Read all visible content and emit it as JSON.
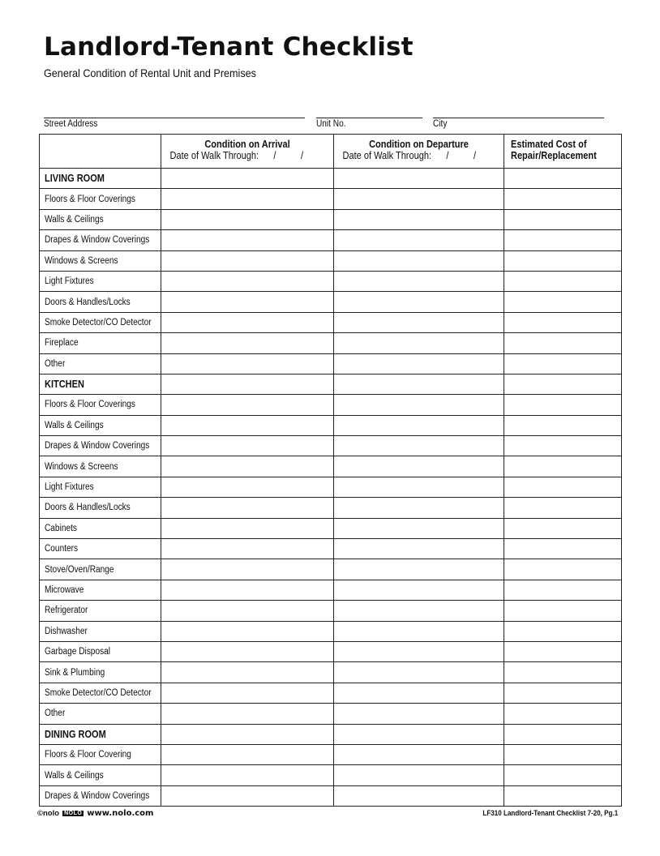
{
  "title": "Landlord-Tenant Checklist",
  "subtitle": "General Condition of Rental Unit and Premises",
  "fields": {
    "street": "Street Address",
    "unit": "Unit No.",
    "city": "City"
  },
  "table": {
    "headers": {
      "arrival": "Condition on Arrival",
      "departure": "Condition on Departure",
      "date_label": "Date of Walk Through:",
      "date_sep": "/          /",
      "cost": "Estimated Cost of Repair/Replacement"
    },
    "sections": [
      {
        "name": "LIVING ROOM",
        "items": [
          "Floors & Floor Coverings",
          "Walls & Ceilings",
          "Drapes & Window Coverings",
          "Windows & Screens",
          "Light Fixtures",
          "Doors & Handles/Locks",
          "Smoke Detector/CO Detector",
          "Fireplace",
          "Other"
        ]
      },
      {
        "name": "KITCHEN",
        "items": [
          "Floors & Floor Coverings",
          "Walls & Ceilings",
          "Drapes & Window Coverings",
          "Windows & Screens",
          "Light Fixtures",
          "Doors & Handles/Locks",
          "Cabinets",
          "Counters",
          "Stove/Oven/Range",
          "Microwave",
          "Refrigerator",
          "Dishwasher",
          "Garbage Disposal",
          "Sink & Plumbing",
          "Smoke Detector/CO Detector",
          "Other"
        ]
      },
      {
        "name": "DINING ROOM",
        "items": [
          "Floors & Floor Covering",
          "Walls & Ceilings",
          "Drapes & Window Coverings"
        ]
      }
    ]
  },
  "footer": {
    "copyright": "©nolo",
    "logo": "NOLO",
    "url": "www.nolo.com",
    "form_id": "LF310 Landlord-Tenant Checklist 7-20, Pg.1"
  }
}
